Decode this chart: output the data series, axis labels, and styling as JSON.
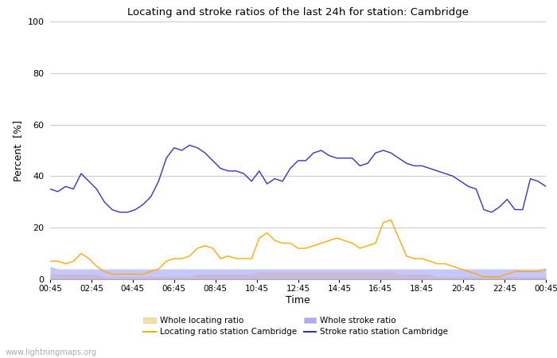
{
  "title": "Locating and stroke ratios of the last 24h for station: Cambridge",
  "xlabel": "Time",
  "ylabel": "Percent  [%]",
  "ylim": [
    0,
    100
  ],
  "yticks": [
    0,
    20,
    40,
    60,
    80,
    100
  ],
  "xtick_labels": [
    "00:45",
    "02:45",
    "04:45",
    "06:45",
    "08:45",
    "10:45",
    "12:45",
    "14:45",
    "16:45",
    "18:45",
    "20:45",
    "22:45",
    "00:45"
  ],
  "background_color": "#ffffff",
  "plot_bg_color": "#ffffff",
  "grid_color": "#cccccc",
  "watermark": "www.lightningmaps.org",
  "stroke_ratio_cambridge": [
    35,
    34,
    36,
    35,
    41,
    38,
    35,
    30,
    27,
    26,
    26,
    27,
    29,
    32,
    38,
    47,
    51,
    50,
    52,
    51,
    49,
    46,
    43,
    42,
    42,
    41,
    38,
    42,
    37,
    39,
    38,
    43,
    46,
    46,
    49,
    50,
    48,
    47,
    47,
    47,
    44,
    45,
    49,
    50,
    49,
    47,
    45,
    44,
    44,
    43,
    42,
    41,
    40,
    38,
    36,
    35,
    27,
    26,
    28,
    31,
    27,
    27,
    39,
    38,
    36
  ],
  "stroke_ratio_whole": [
    5,
    4,
    4,
    4,
    4,
    4,
    4,
    4,
    4,
    4,
    4,
    4,
    4,
    4,
    4,
    4,
    4,
    4,
    4,
    4,
    4,
    4,
    4,
    4,
    4,
    4,
    4,
    4,
    4,
    4,
    4,
    4,
    4,
    4,
    4,
    4,
    4,
    4,
    4,
    4,
    4,
    4,
    4,
    4,
    4,
    4,
    4,
    4,
    4,
    4,
    4,
    4,
    4,
    4,
    4,
    4,
    4,
    4,
    4,
    4,
    4,
    4,
    4,
    4,
    4
  ],
  "locating_ratio_cambridge": [
    7,
    7,
    6,
    7,
    10,
    8,
    5,
    3,
    2,
    2,
    2,
    2,
    2,
    3,
    4,
    7,
    8,
    8,
    9,
    12,
    13,
    12,
    8,
    9,
    8,
    8,
    8,
    16,
    18,
    15,
    14,
    14,
    12,
    12,
    13,
    14,
    15,
    16,
    15,
    14,
    12,
    13,
    14,
    22,
    23,
    16,
    9,
    8,
    8,
    7,
    6,
    6,
    5,
    4,
    3,
    2,
    1,
    1,
    1,
    2,
    3,
    3,
    3,
    3,
    4
  ],
  "locating_ratio_whole": [
    2,
    2,
    2,
    2,
    2,
    2,
    2,
    1,
    1,
    1,
    1,
    1,
    1,
    1,
    1,
    1,
    1,
    1,
    1,
    2,
    2,
    2,
    2,
    2,
    2,
    2,
    2,
    3,
    3,
    3,
    3,
    3,
    3,
    3,
    3,
    3,
    3,
    3,
    3,
    3,
    3,
    3,
    3,
    3,
    3,
    2,
    2,
    2,
    2,
    2,
    1,
    1,
    1,
    1,
    1,
    1,
    1,
    1,
    1,
    1,
    1,
    1,
    1,
    1,
    1
  ],
  "color_stroke_cambridge": "#3333cc",
  "color_stroke_whole": "#aaaaff",
  "color_locating_cambridge": "#ffaa00",
  "color_locating_whole": "#ffdd99",
  "n_points": 65
}
